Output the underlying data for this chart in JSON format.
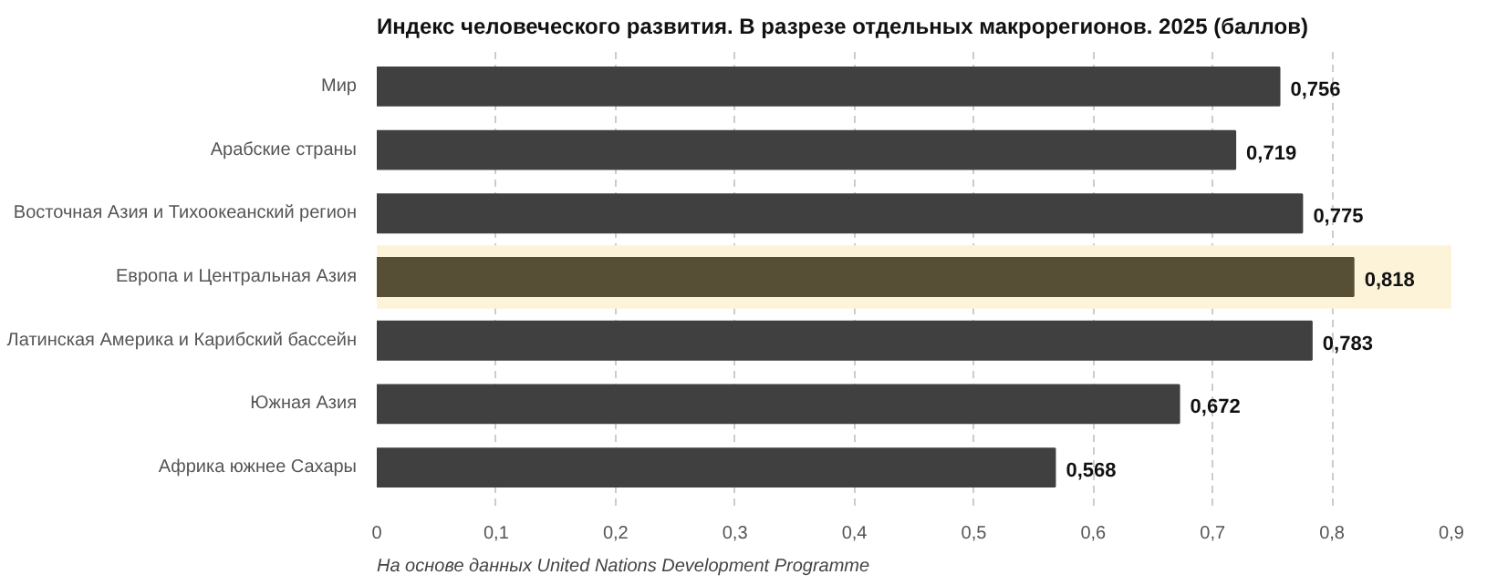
{
  "chart_data": {
    "type": "bar",
    "orientation": "horizontal",
    "title": "Индекс человеческого развития. В разрезе отдельных макрорегионов. 2025 (баллов)",
    "categories": [
      "Мир",
      "Арабские страны",
      "Восточная Азия и Тихоокеанский регион",
      "Европа и Центральная Азия",
      "Латинская Америка и Карибский бассейн",
      "Южная Азия",
      "Африка южнее Сахары"
    ],
    "values": [
      0.756,
      0.719,
      0.775,
      0.818,
      0.783,
      0.672,
      0.568
    ],
    "value_labels": [
      "0,756",
      "0,719",
      "0,775",
      "0,818",
      "0,783",
      "0,672",
      "0,568"
    ],
    "colors": [
      "#404040",
      "#404040",
      "#404040",
      "#574e36",
      "#404040",
      "#404040",
      "#404040"
    ],
    "bands": [
      {
        "axis": "y",
        "from": "Европа и Центральная Азия",
        "to": "Европа и Центральная Азия",
        "color": "#fcf3d9"
      }
    ],
    "xlim": [
      0,
      0.9
    ],
    "xticks": [
      {
        "value": 0,
        "label": "0"
      },
      {
        "value": 0.1,
        "label": "0,1"
      },
      {
        "value": 0.2,
        "label": "0,2"
      },
      {
        "value": 0.3,
        "label": "0,3"
      },
      {
        "value": 0.4,
        "label": "0,4"
      },
      {
        "value": 0.5,
        "label": "0,5"
      },
      {
        "value": 0.6,
        "label": "0,6"
      },
      {
        "value": 0.7,
        "label": "0,7"
      },
      {
        "value": 0.8,
        "label": "0,8"
      },
      {
        "value": 0.9,
        "label": "0,9"
      }
    ],
    "grid": "x",
    "annotations": [
      "На основе данных United Nations Development Programme"
    ]
  }
}
